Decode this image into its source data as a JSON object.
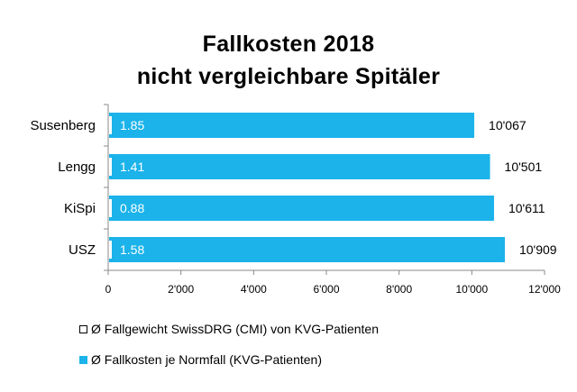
{
  "chart_data": {
    "type": "bar",
    "orientation": "horizontal",
    "title_line1": "Fallkosten 2018",
    "title_line2": "nicht vergleichbare Spitäler",
    "categories": [
      "Susenberg",
      "Lengg",
      "KiSpi",
      "USZ"
    ],
    "series": [
      {
        "name": "Ø Fallkosten je Normfall (KVG-Patienten)",
        "values": [
          10067,
          10501,
          10611,
          10909
        ],
        "value_labels": [
          "10'067",
          "10'501",
          "10'611",
          "10'909"
        ],
        "color": "#1bb3ea"
      },
      {
        "name": "Ø Fallgewicht SwissDRG (CMI) von KVG-Patienten",
        "values": [
          1.85,
          1.41,
          0.88,
          1.58
        ],
        "value_labels": [
          "1.85",
          "1.41",
          "0.88",
          "1.58"
        ],
        "color": "#ffffff"
      }
    ],
    "xlim": [
      0,
      12000
    ],
    "x_ticks": [
      0,
      2000,
      4000,
      6000,
      8000,
      10000,
      12000
    ],
    "x_tick_labels": [
      "0",
      "2'000",
      "4'000",
      "6'000",
      "8'000",
      "10'000",
      "12'000"
    ],
    "legend": [
      "Ø Fallgewicht SwissDRG (CMI) von KVG-Patienten",
      "Ø Fallkosten je Normfall (KVG-Patienten)"
    ],
    "legend_position": "bottom-left",
    "grid": false
  }
}
